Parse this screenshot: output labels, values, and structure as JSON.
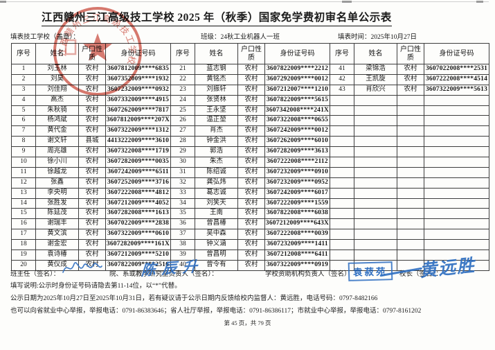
{
  "title": "江西赣州三江高级技工学校 2025 年（秋季）国家免学费初审名单公示表",
  "meta": {
    "school_label": "填表技工学校（盖章）：",
    "class_label": "班级：24秋工业机器人一班",
    "date_label": "填表时间：2025年10月27日"
  },
  "table": {
    "headers": [
      "序号",
      "姓名",
      "户口性质",
      "身份证号码"
    ],
    "left": [
      [
        "1",
        "刘玉林",
        "农村",
        "3607812009****6835"
      ],
      [
        "2",
        "刘昊",
        "农村",
        "3607352009****1932"
      ],
      [
        "3",
        "刘佳翔",
        "农村",
        "3607232009****0932"
      ],
      [
        "4",
        "高杰",
        "农村",
        "3607332009****4915"
      ],
      [
        "5",
        "朱秋骑",
        "农村",
        "3607262009****7817"
      ],
      [
        "6",
        "杨鸿斌",
        "农村",
        "3607812009****207X"
      ],
      [
        "7",
        "黄代金",
        "农村",
        "3607322009****1312"
      ],
      [
        "8",
        "谢文轩",
        "县城",
        "4413222009****3610"
      ],
      [
        "9",
        "周兆雄",
        "农村",
        "3607322008****1719"
      ],
      [
        "10",
        "徐小川",
        "农村",
        "3607282009****0035"
      ],
      [
        "11",
        "徐越龙",
        "农村",
        "3607242009****6511"
      ],
      [
        "12",
        "张鑫",
        "农村",
        "3607252009****3716"
      ],
      [
        "13",
        "李央明",
        "农村",
        "3607222008****4812"
      ],
      [
        "14",
        "张胜发",
        "农村",
        "3607212009****4052"
      ],
      [
        "15",
        "陈延茂",
        "农村",
        "3607282008****1613"
      ],
      [
        "16",
        "谢瑞丰",
        "农村",
        "3607022009****2838"
      ],
      [
        "17",
        "黄文滨",
        "农村",
        "3607322009****0610"
      ],
      [
        "18",
        "谢金宏",
        "农村",
        "3607282009****161X"
      ],
      [
        "19",
        "袁诗椿",
        "农村",
        "3607212009****5210"
      ],
      [
        "20",
        "黄仪成",
        "农村",
        "3607822009****2516"
      ]
    ],
    "middle": [
      [
        "21",
        "蓝志钢",
        "农村",
        "3607822009****2212"
      ],
      [
        "22",
        "黄铭杰",
        "农村",
        "3607292009****0012"
      ],
      [
        "23",
        "刘振轩",
        "农村",
        "3607212007****1210"
      ],
      [
        "24",
        "张贤林",
        "农村",
        "3607822009****5615"
      ],
      [
        "25",
        "王永坚",
        "农村",
        "3607342008****241X"
      ],
      [
        "26",
        "温正堃",
        "农村",
        "3607322008****0655"
      ],
      [
        "27",
        "肖杰",
        "农村",
        "3607242009****0012"
      ],
      [
        "28",
        "钟金洪",
        "农村",
        "3607262009****6010"
      ],
      [
        "29",
        "郭浩",
        "农村",
        "3607282009****3613"
      ],
      [
        "30",
        "朱杰",
        "农村",
        "3607222008****2112"
      ],
      [
        "31",
        "陈绍诚",
        "农村",
        "3607232009****0910"
      ],
      [
        "32",
        "龚弘炜",
        "农村",
        "3607232009****0952"
      ],
      [
        "33",
        "葛志诚",
        "农村",
        "3607242009****6017"
      ],
      [
        "34",
        "刘笑天",
        "农村",
        "3607222009****1559"
      ],
      [
        "35",
        "王南",
        "农村",
        "3607822008****6038"
      ],
      [
        "36",
        "曾昌椿",
        "农村",
        "3607212009****643X"
      ],
      [
        "37",
        "吴中森",
        "农村",
        "3607222008****0039"
      ],
      [
        "38",
        "钟义涵",
        "农村",
        "3607232009****1411"
      ],
      [
        "39",
        "曾昌明",
        "农村",
        "3607212008****6411"
      ],
      [
        "40",
        "曾令有",
        "农村",
        "3607322009****0919"
      ]
    ],
    "right": [
      [
        "41",
        "梁锦浩",
        "农村",
        "3607022008****2531"
      ],
      [
        "42",
        "王凯旋",
        "农村",
        "3607222008****4514"
      ],
      [
        "43",
        "肖欣兴",
        "农村",
        "3607322009****5613"
      ],
      [
        "",
        "",
        "",
        ""
      ],
      [
        "",
        "",
        "",
        ""
      ],
      [
        "",
        "",
        "",
        ""
      ],
      [
        "",
        "",
        "",
        ""
      ],
      [
        "",
        "",
        "",
        ""
      ],
      [
        "",
        "",
        "",
        ""
      ],
      [
        "",
        "",
        "",
        ""
      ],
      [
        "",
        "",
        "",
        ""
      ],
      [
        "",
        "",
        "",
        ""
      ],
      [
        "",
        "",
        "",
        ""
      ],
      [
        "",
        "",
        "",
        ""
      ],
      [
        "",
        "",
        "",
        ""
      ],
      [
        "",
        "",
        "",
        ""
      ],
      [
        "",
        "",
        "",
        ""
      ],
      [
        "",
        "",
        "",
        ""
      ],
      [
        "",
        "",
        "",
        ""
      ],
      [
        "",
        "",
        "",
        ""
      ]
    ]
  },
  "signatures": {
    "class_teacher_label": "班主任（签名）：",
    "dept_head_label": "院、系或教学研究室负责人（签名）：",
    "dept_head_signature": "陈辰升",
    "aid_office_label": "学校资助机构负责人（签名）",
    "aid_office_stamp": "袁菽苑",
    "principal_label": "校长（签名）：",
    "principal_signature": "黄远胜"
  },
  "notes": {
    "note1": "填写说明:公示时身份证号码请隐去第11-14位，以“*”代替。",
    "note2": "公示日期为2025年10月27日至2025年10月31日，若有疑议请于公示日期内反馈给校内监督人：黄远胜，电话号码：0797-8482166",
    "note3": "也可以向省就业中心举报，举报电话：0791-86383646；省人社厅举报，举报电话：0791-86386117；市就业中心举报，举报电话：0797-8161202"
  },
  "footer": {
    "page_info": "第 45 页，共 79 页"
  },
  "stamp": {
    "seal_text": "江西赣州三江高级技工学校",
    "seal_color": "#c5392b",
    "signature_blue": "#2f6fc1"
  }
}
